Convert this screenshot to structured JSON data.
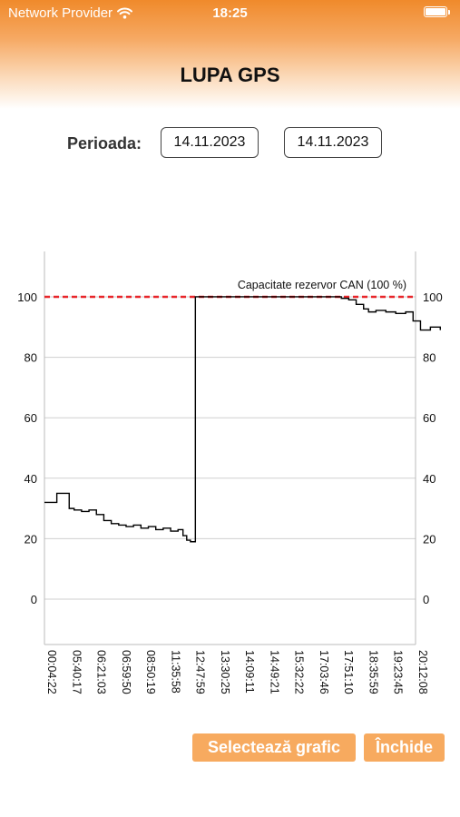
{
  "status_bar": {
    "carrier": "Network Provider",
    "time": "18:25"
  },
  "header": {
    "title": "LUPA GPS"
  },
  "period": {
    "label": "Perioada:",
    "from": "14.11.2023",
    "to": "14.11.2023"
  },
  "chart_data": {
    "type": "line",
    "title": "",
    "xlabel": "",
    "ylabel": "",
    "ylim": [
      -15,
      115
    ],
    "y_ticks": [
      0,
      20,
      40,
      60,
      80,
      100
    ],
    "x_tick_labels": [
      "00:04:22",
      "05:40:17",
      "06:21:03",
      "06:59:50",
      "08:50:19",
      "11:35:58",
      "12:47:59",
      "13:30:25",
      "14:09:11",
      "14:49:21",
      "15:32:22",
      "17:03:46",
      "17:51:10",
      "18:35:59",
      "19:23:45",
      "20:12:08"
    ],
    "grid": true,
    "reference_line": {
      "value": 100,
      "label": "Capacitate rezervor CAN (100 %)",
      "color": "#e8262a"
    },
    "series": [
      {
        "color": "#000000",
        "x": [
          0,
          0.5,
          1.0,
          1.2,
          1.5,
          1.8,
          2.1,
          2.4,
          2.7,
          3.0,
          3.3,
          3.6,
          3.9,
          4.2,
          4.5,
          4.8,
          5.1,
          5.4,
          5.6,
          5.75,
          5.9,
          6.1,
          6.5,
          7.5,
          8.5,
          9.5,
          10.5,
          11.5,
          12.0,
          12.3,
          12.6,
          12.9,
          13.1,
          13.4,
          13.8,
          14.2,
          14.6,
          14.9,
          15.2,
          15.6,
          16.0
        ],
        "values": [
          32,
          35,
          30,
          29.5,
          29,
          29.5,
          28,
          26,
          25,
          24.5,
          24,
          24.5,
          23.5,
          24,
          23,
          23.5,
          22.5,
          23,
          21,
          19.5,
          19,
          100,
          100,
          100,
          100,
          100,
          100,
          100,
          99.5,
          99,
          97.5,
          96,
          95,
          95.5,
          95,
          94.5,
          95,
          92,
          89,
          90,
          89
        ]
      }
    ]
  },
  "buttons": {
    "select_chart": "Selectează grafic",
    "close": "Închide"
  },
  "icons": {
    "wifi": "wifi-icon",
    "battery": "battery-icon"
  },
  "colors": {
    "accent": "#f08a2b",
    "button": "#f7aa5f",
    "reference": "#e8262a"
  }
}
